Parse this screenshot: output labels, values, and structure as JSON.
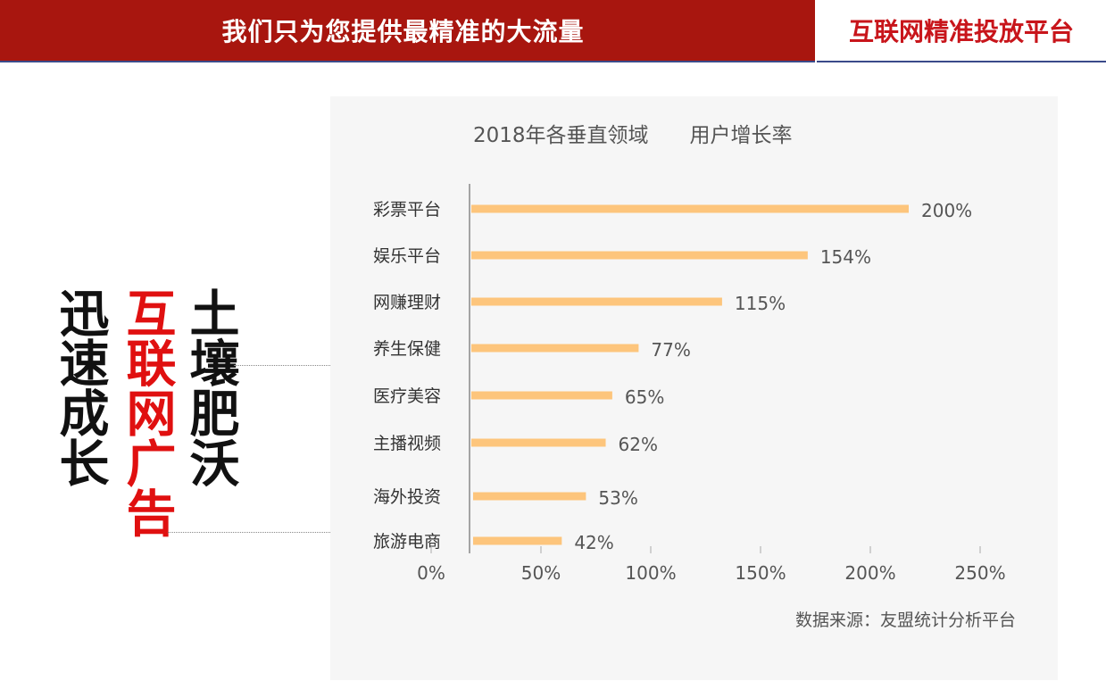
{
  "header": {
    "title": "我们只为您提供最精准的大流量",
    "tag": "互联网精准投放平台"
  },
  "slogan": {
    "col1": "迅速成长",
    "col2": "互联网广告",
    "col3": "土壤肥沃"
  },
  "colors": {
    "header_bg": "#a8160f",
    "accent_red": "#e01010",
    "bar": "#fdc57c"
  },
  "chart_data": {
    "type": "bar",
    "orientation": "horizontal",
    "title": "2018年各垂直领域　　用户增长率",
    "categories": [
      "彩票平台",
      "娱乐平台",
      "网赚理财",
      "养生保健",
      "医疗美容",
      "主播视频",
      "海外投资",
      "旅游电商"
    ],
    "values": [
      200,
      154,
      115,
      77,
      65,
      62,
      53,
      42
    ],
    "value_labels": [
      "200%",
      "154%",
      "115%",
      "77%",
      "65%",
      "62%",
      "53%",
      "42%"
    ],
    "xticks": [
      "0%",
      "50%",
      "100%",
      "150%",
      "200%",
      "250%"
    ],
    "xlim": [
      0,
      250
    ],
    "unit": "%",
    "source": "数据来源：友盟统计分析平台"
  }
}
